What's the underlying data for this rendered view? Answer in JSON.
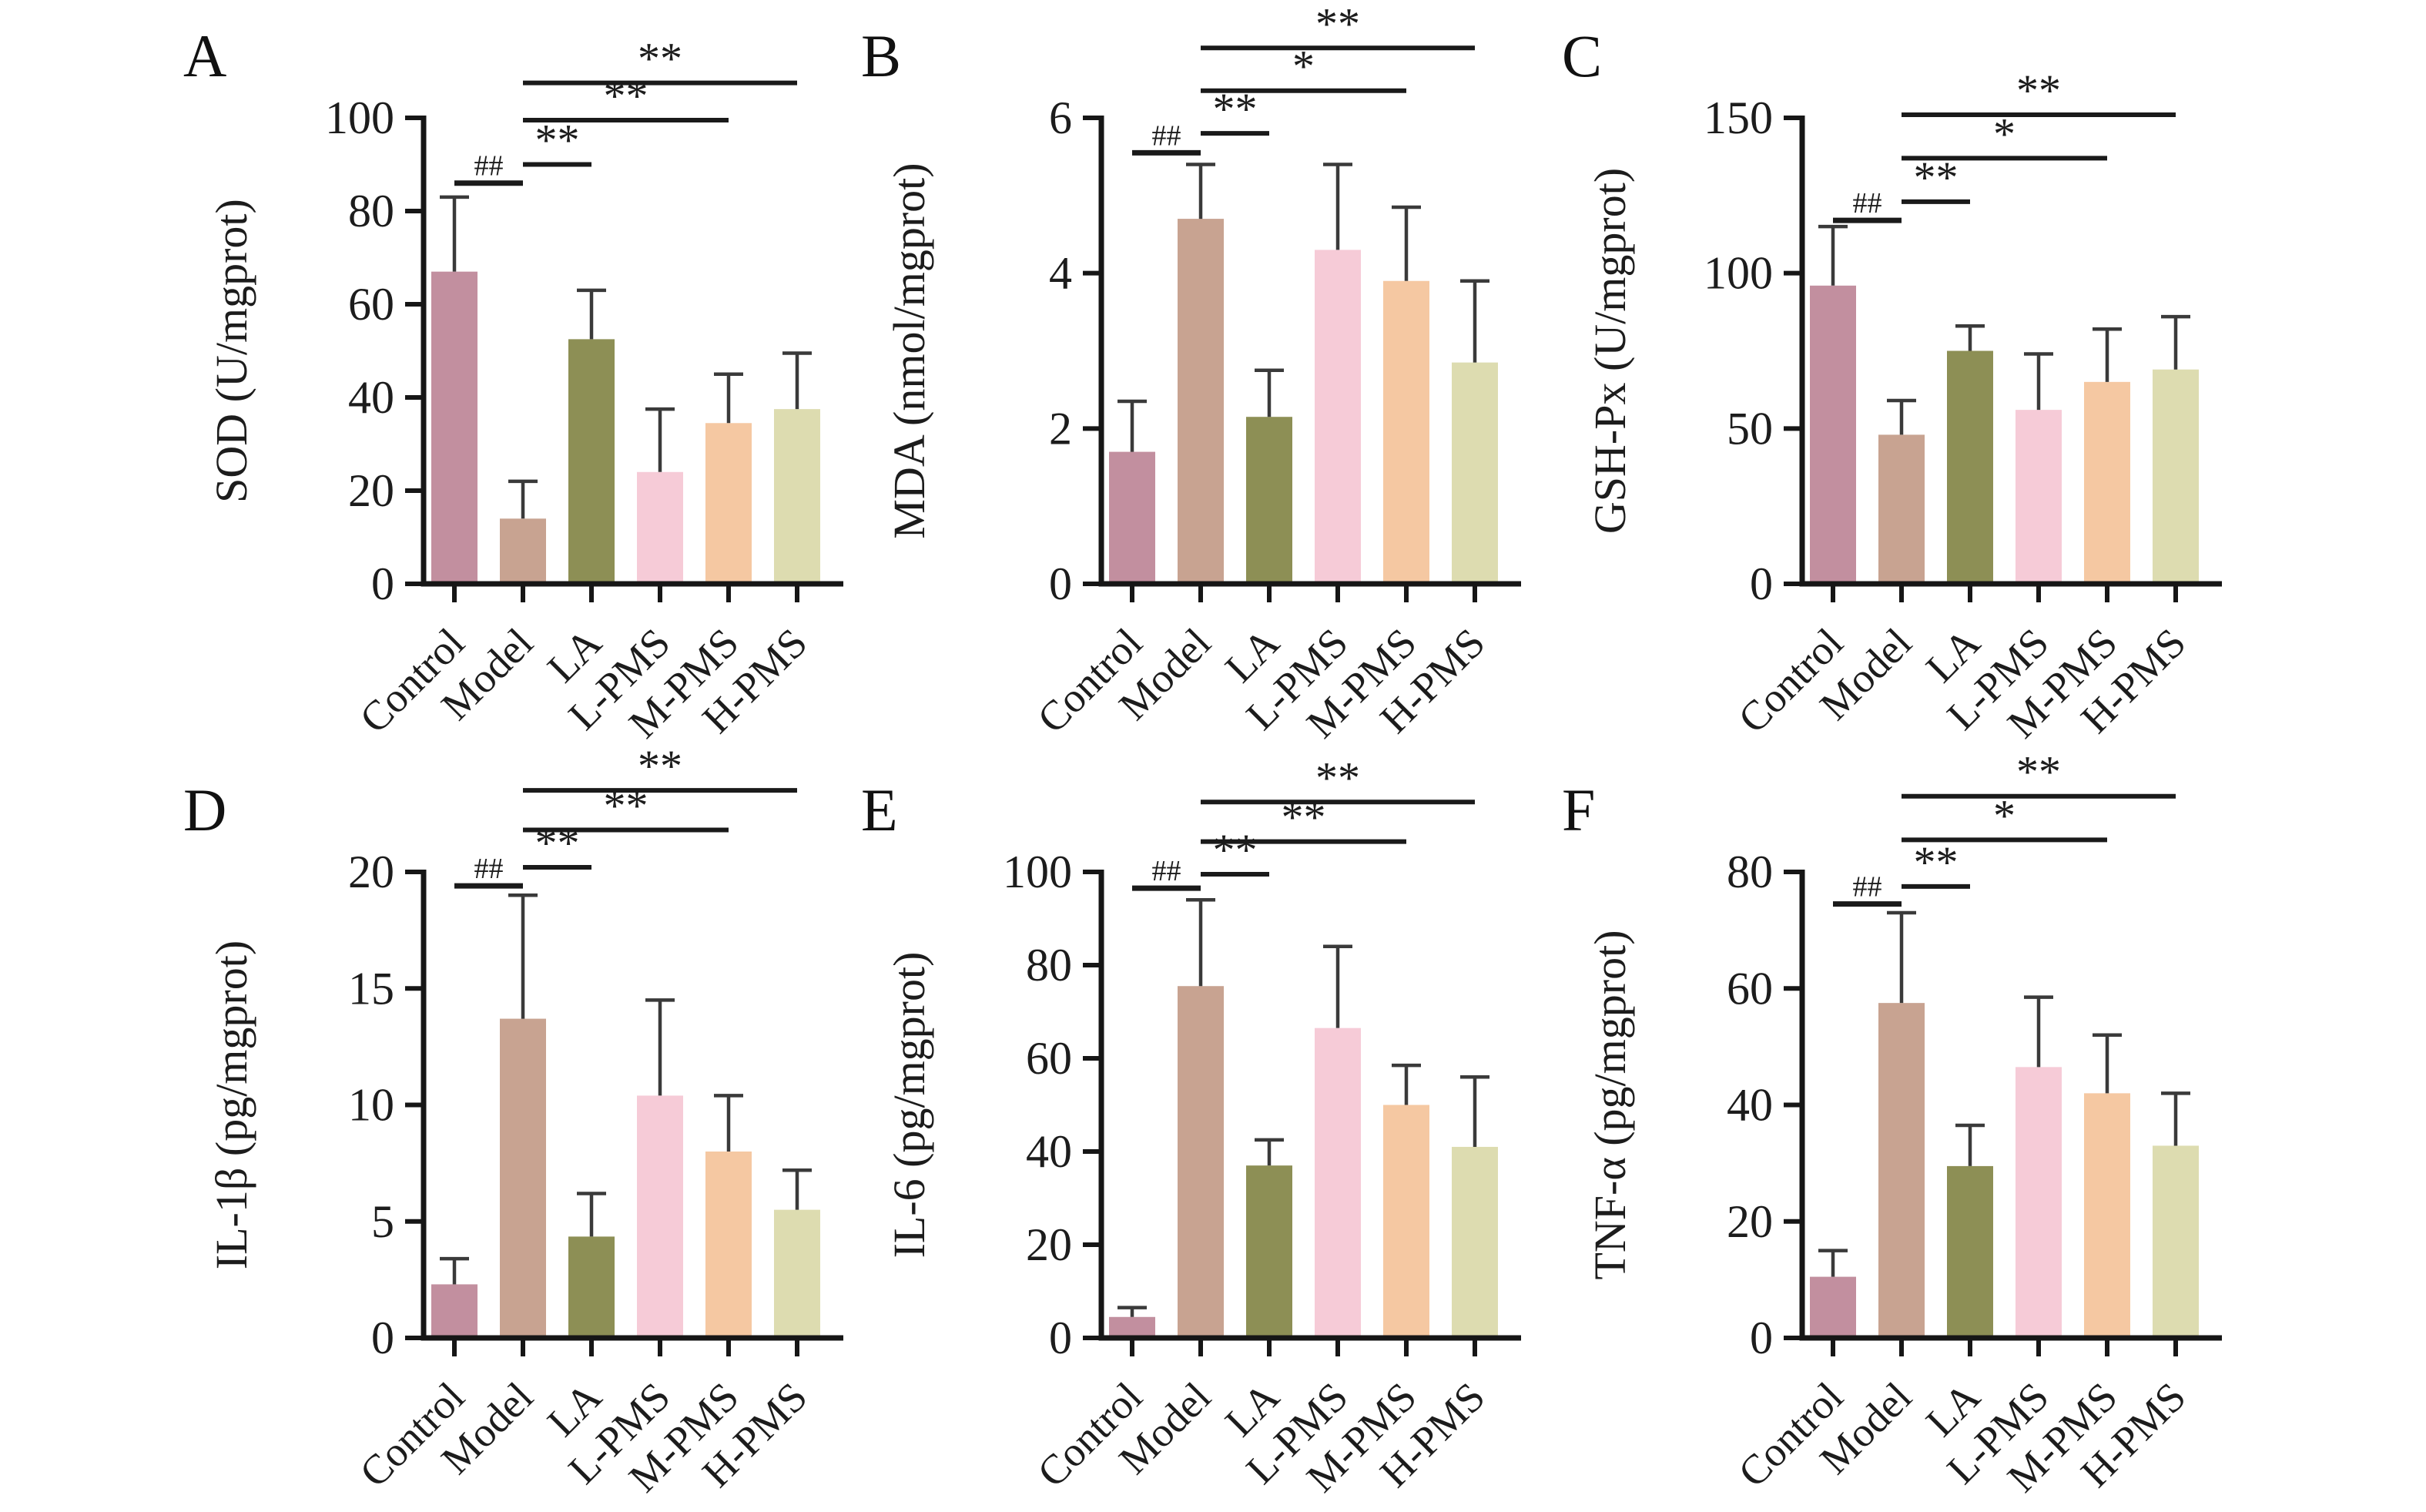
{
  "figure": {
    "background": "#ffffff",
    "text_color": "#1c1c1c",
    "axis_color": "#161616",
    "error_color": "#3a3a3a",
    "bracket_color": "#1a1a1a",
    "categories": [
      "Control",
      "Model",
      "LA",
      "L-PMS",
      "M-PMS",
      "H-PMS"
    ],
    "bar_colors": [
      "#c28f9f",
      "#c8a391",
      "#8d8f55",
      "#f6cbd7",
      "#f5c8a2",
      "#dddcb0"
    ]
  },
  "chart_data": [
    {
      "panel": "A",
      "type": "bar",
      "ylabel": "SOD (U/mgprot)",
      "categories": [
        "Control",
        "Model",
        "LA",
        "L-PMS",
        "M-PMS",
        "H-PMS"
      ],
      "values": [
        67,
        14,
        52.5,
        24,
        34.5,
        37.5
      ],
      "errors": [
        16,
        8,
        10.5,
        13.5,
        10.5,
        12
      ],
      "ylim": [
        0,
        100
      ],
      "yticks": [
        0,
        20,
        40,
        60,
        80,
        100
      ],
      "significance": [
        {
          "from": "Control",
          "to": "Model",
          "label": "##",
          "y": 86
        },
        {
          "from": "Model",
          "to": "LA",
          "label": "**",
          "y": 90
        },
        {
          "from": "Model",
          "to": "M-PMS",
          "label": "**",
          "y": 99.5
        },
        {
          "from": "Model",
          "to": "H-PMS",
          "label": "**",
          "y": 107.5
        }
      ]
    },
    {
      "panel": "B",
      "type": "bar",
      "ylabel": "MDA (nmol/mgprot)",
      "categories": [
        "Control",
        "Model",
        "LA",
        "L-PMS",
        "M-PMS",
        "H-PMS"
      ],
      "values": [
        1.7,
        4.7,
        2.15,
        4.3,
        3.9,
        2.85
      ],
      "errors": [
        0.65,
        0.7,
        0.6,
        1.1,
        0.95,
        1.05
      ],
      "ylim": [
        0,
        6
      ],
      "yticks": [
        0,
        2,
        4,
        6
      ],
      "significance": [
        {
          "from": "Control",
          "to": "Model",
          "label": "##",
          "y": 5.55
        },
        {
          "from": "Model",
          "to": "LA",
          "label": "**",
          "y": 5.8
        },
        {
          "from": "Model",
          "to": "M-PMS",
          "label": "*",
          "y": 6.35
        },
        {
          "from": "Model",
          "to": "H-PMS",
          "label": "**",
          "y": 6.9
        }
      ]
    },
    {
      "panel": "C",
      "type": "bar",
      "ylabel": "GSH-Px (U/mgprot)",
      "categories": [
        "Control",
        "Model",
        "LA",
        "L-PMS",
        "M-PMS",
        "H-PMS"
      ],
      "values": [
        96,
        48,
        75,
        56,
        65,
        69
      ],
      "errors": [
        19,
        11,
        8,
        18,
        17,
        17
      ],
      "ylim": [
        0,
        150
      ],
      "yticks": [
        0,
        50,
        100,
        150
      ],
      "significance": [
        {
          "from": "Control",
          "to": "Model",
          "label": "##",
          "y": 117
        },
        {
          "from": "Model",
          "to": "LA",
          "label": "**",
          "y": 123
        },
        {
          "from": "Model",
          "to": "M-PMS",
          "label": "*",
          "y": 137
        },
        {
          "from": "Model",
          "to": "H-PMS",
          "label": "**",
          "y": 151
        }
      ]
    },
    {
      "panel": "D",
      "type": "bar",
      "ylabel": "IL-1β (pg/mgprot)",
      "categories": [
        "Control",
        "Model",
        "LA",
        "L-PMS",
        "M-PMS",
        "H-PMS"
      ],
      "values": [
        2.3,
        13.7,
        4.35,
        10.4,
        8,
        5.5
      ],
      "errors": [
        1.1,
        5.3,
        1.85,
        4.1,
        2.4,
        1.7
      ],
      "ylim": [
        0,
        20
      ],
      "yticks": [
        0,
        5,
        10,
        15,
        20
      ],
      "significance": [
        {
          "from": "Control",
          "to": "Model",
          "label": "##",
          "y": 19.4
        },
        {
          "from": "Model",
          "to": "LA",
          "label": "**",
          "y": 20.2
        },
        {
          "from": "Model",
          "to": "M-PMS",
          "label": "**",
          "y": 21.8
        },
        {
          "from": "Model",
          "to": "H-PMS",
          "label": "**",
          "y": 23.5
        }
      ]
    },
    {
      "panel": "E",
      "type": "bar",
      "ylabel": "IL-6 (pg/mgprot)",
      "categories": [
        "Control",
        "Model",
        "LA",
        "L-PMS",
        "M-PMS",
        "H-PMS"
      ],
      "values": [
        4.5,
        75.5,
        37,
        66.5,
        50,
        41
      ],
      "errors": [
        2,
        18.5,
        5.5,
        17.5,
        8.5,
        15
      ],
      "ylim": [
        0,
        100
      ],
      "yticks": [
        0,
        20,
        40,
        60,
        80,
        100
      ],
      "significance": [
        {
          "from": "Control",
          "to": "Model",
          "label": "##",
          "y": 96.5
        },
        {
          "from": "Model",
          "to": "LA",
          "label": "**",
          "y": 99.5
        },
        {
          "from": "Model",
          "to": "M-PMS",
          "label": "**",
          "y": 106.5
        },
        {
          "from": "Model",
          "to": "H-PMS",
          "label": "**",
          "y": 115
        }
      ]
    },
    {
      "panel": "F",
      "type": "bar",
      "ylabel": "TNF-α (pg/mgprot)",
      "categories": [
        "Control",
        "Model",
        "LA",
        "L-PMS",
        "M-PMS",
        "H-PMS"
      ],
      "values": [
        10.5,
        57.5,
        29.5,
        46.5,
        42,
        33
      ],
      "errors": [
        4.5,
        15.5,
        7,
        12,
        10,
        9
      ],
      "ylim": [
        0,
        80
      ],
      "yticks": [
        0,
        20,
        40,
        60,
        80
      ],
      "significance": [
        {
          "from": "Control",
          "to": "Model",
          "label": "##",
          "y": 74.5
        },
        {
          "from": "Model",
          "to": "LA",
          "label": "**",
          "y": 77.5
        },
        {
          "from": "Model",
          "to": "M-PMS",
          "label": "*",
          "y": 85.5
        },
        {
          "from": "Model",
          "to": "H-PMS",
          "label": "**",
          "y": 93
        }
      ]
    }
  ]
}
